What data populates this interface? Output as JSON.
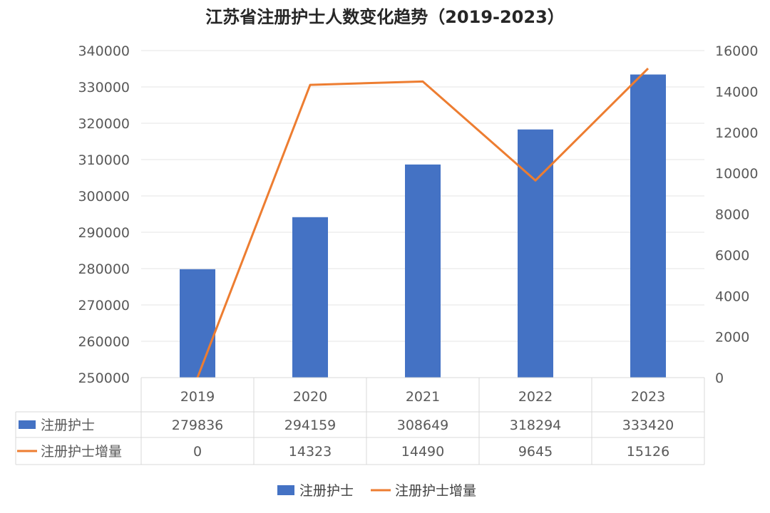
{
  "chart_data": {
    "type": "bar",
    "title": "江苏省注册护士人数变化趋势（2019-2023）",
    "categories": [
      "2019",
      "2020",
      "2021",
      "2022",
      "2023"
    ],
    "series": [
      {
        "name": "注册护士",
        "type": "bar",
        "axis": "left",
        "color": "#4472C4",
        "values": [
          279836,
          294159,
          308649,
          318294,
          333420
        ]
      },
      {
        "name": "注册护士增量",
        "type": "line",
        "axis": "right",
        "color": "#ED7D31",
        "values": [
          0,
          14323,
          14490,
          9645,
          15126
        ]
      }
    ],
    "y_left": {
      "min": 250000,
      "max": 340000,
      "ticks": [
        "340000",
        "330000",
        "320000",
        "310000",
        "300000",
        "290000",
        "280000",
        "270000",
        "260000",
        "250000"
      ]
    },
    "y_right": {
      "min": 0,
      "max": 16000,
      "ticks": [
        "16000",
        "14000",
        "12000",
        "10000",
        "8000",
        "6000",
        "4000",
        "2000",
        "0"
      ]
    },
    "grid": true,
    "legend": "bottom",
    "data_table": true
  }
}
